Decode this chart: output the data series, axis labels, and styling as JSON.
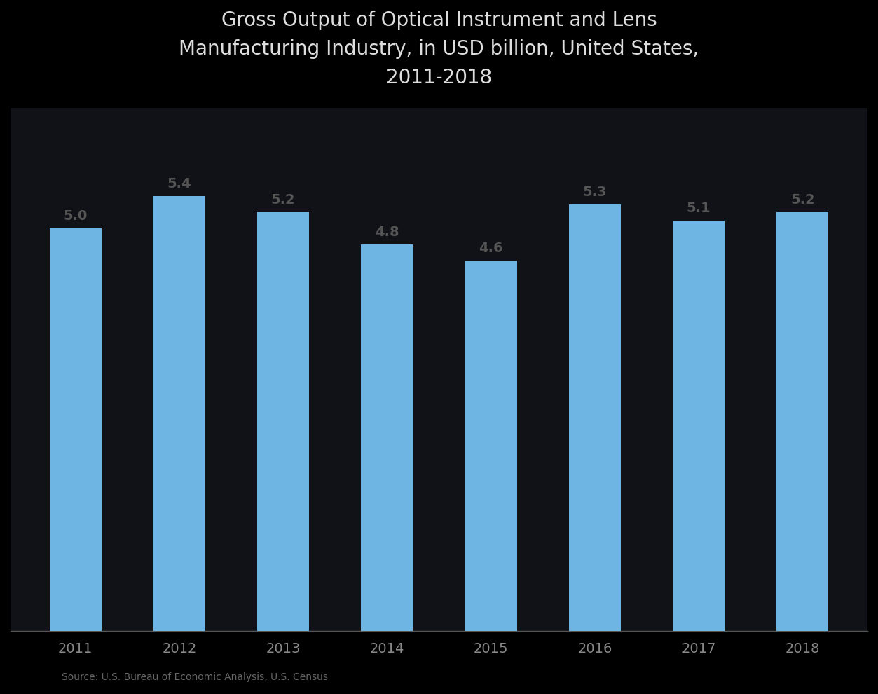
{
  "title_line1": "Gross Output of Optical Instrument and Lens",
  "title_line2": "Manufacturing Industry, in USD billion, United States,",
  "title_line3": "2011-2018",
  "categories": [
    "2011",
    "2012",
    "2013",
    "2014",
    "2015",
    "2016",
    "2017",
    "2018"
  ],
  "values": [
    5.0,
    5.4,
    5.2,
    4.8,
    4.6,
    5.3,
    5.1,
    5.2
  ],
  "bar_color": "#6EB5E3",
  "bar_edge_color": "#6EB5E3",
  "background_color": "#1a1a2e",
  "plot_background": "#1a1a2e",
  "ylim": [
    0,
    6.5
  ],
  "label_fontsize": 14,
  "title_fontsize": 20,
  "title_color": "#dddddd",
  "tick_label_color": "#888888",
  "bar_label_color": "#555555",
  "axis_line_color": "#555555",
  "source_text": "Source: U.S. Bureau of Economic Analysis, U.S. Census",
  "source_fontsize": 10
}
